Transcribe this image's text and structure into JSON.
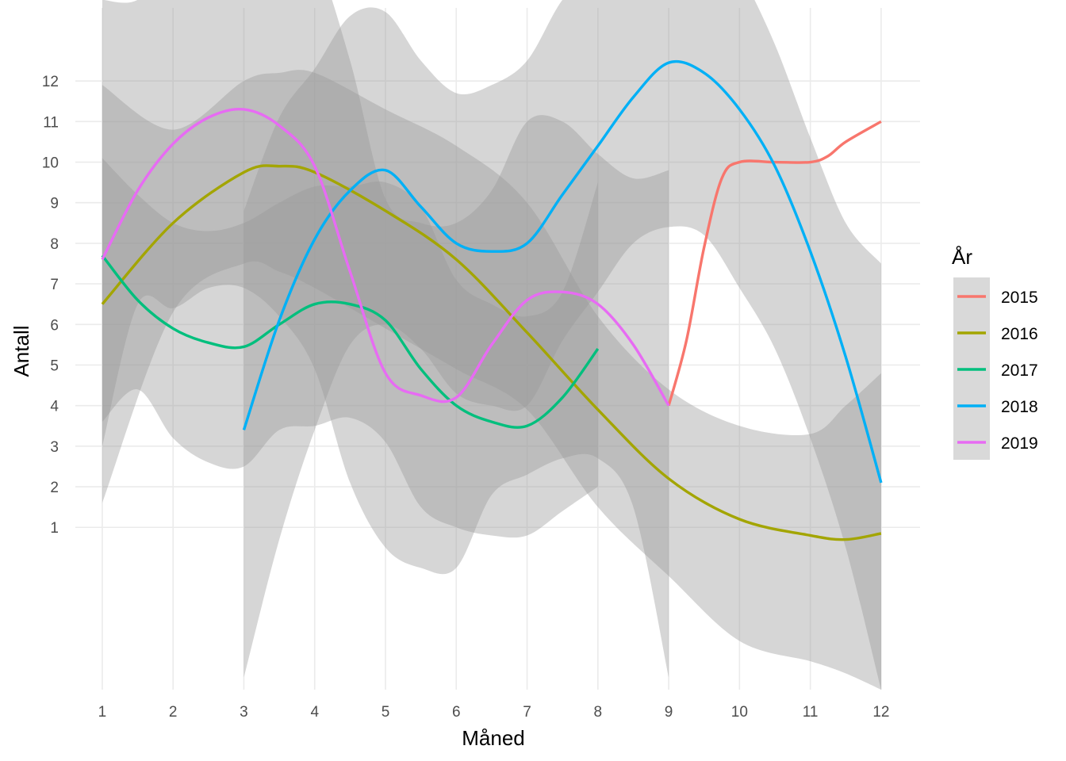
{
  "chart_data": {
    "type": "line",
    "xlabel": "Måned",
    "ylabel": "Antall",
    "xlim": [
      0.62,
      12.55
    ],
    "ylim": [
      -3.0,
      13.8
    ],
    "x_ticks": [
      1,
      2,
      3,
      4,
      5,
      6,
      7,
      8,
      9,
      10,
      11,
      12
    ],
    "y_ticks": [
      1,
      2,
      3,
      4,
      5,
      6,
      7,
      8,
      9,
      10,
      11,
      12
    ],
    "grid": true,
    "legend_title": "År",
    "legend_position": "right",
    "series": [
      {
        "name": "2015",
        "color": "#F8766D",
        "x": [
          9,
          9.25,
          9.5,
          9.75,
          10,
          10.5,
          11,
          11.25,
          11.5,
          12
        ],
        "y": [
          4.0,
          5.6,
          7.9,
          9.6,
          10.0,
          10.0,
          10.0,
          10.15,
          10.5,
          11.0
        ],
        "band": null
      },
      {
        "name": "2016",
        "color": "#A3A500",
        "x": [
          1,
          2,
          3,
          3.5,
          4,
          5,
          6,
          7,
          8,
          9,
          10,
          11,
          11.5,
          12
        ],
        "y": [
          6.5,
          8.5,
          9.75,
          9.9,
          9.75,
          8.8,
          7.6,
          5.8,
          3.9,
          2.2,
          1.2,
          0.8,
          0.7,
          0.85
        ],
        "band": {
          "lower": [
            1.6,
            6.3,
            7.5,
            7.3,
            6.9,
            5.9,
            4.9,
            3.9,
            1.5,
            -0.2,
            -1.8,
            -2.3,
            -2.6,
            -3.0
          ],
          "upper": [
            11.9,
            10.8,
            12.0,
            12.2,
            12.2,
            11.3,
            10.4,
            9.0,
            6.2,
            4.4,
            3.5,
            3.3,
            4.0,
            4.8
          ]
        }
      },
      {
        "name": "2017",
        "color": "#00BF7D",
        "x": [
          1,
          1.5,
          2,
          2.5,
          3,
          3.5,
          4,
          4.5,
          5,
          5.5,
          6,
          6.5,
          7,
          7.5,
          8
        ],
        "y": [
          7.7,
          6.6,
          5.9,
          5.55,
          5.45,
          6.0,
          6.5,
          6.5,
          6.1,
          4.9,
          4.0,
          3.6,
          3.5,
          4.2,
          5.4
        ],
        "band": {
          "lower": [
            3.6,
            4.4,
            3.2,
            2.6,
            2.5,
            3.4,
            3.5,
            3.7,
            3.1,
            1.5,
            1.0,
            0.8,
            0.8,
            1.4,
            2.0
          ],
          "upper": [
            10.1,
            9.2,
            8.5,
            8.3,
            8.5,
            9.0,
            9.4,
            9.4,
            9.5,
            8.9,
            7.1,
            6.5,
            6.2,
            6.8,
            9.5
          ]
        }
      },
      {
        "name": "2018",
        "color": "#00B0F6",
        "x": [
          3,
          3.5,
          4,
          4.5,
          5,
          5.5,
          6,
          6.5,
          7,
          7.5,
          8,
          8.5,
          9,
          9.5,
          10,
          10.5,
          11,
          11.5,
          12
        ],
        "y": [
          3.4,
          6.1,
          8.1,
          9.3,
          9.8,
          8.9,
          8.0,
          7.8,
          8.0,
          9.2,
          10.4,
          11.6,
          12.45,
          12.2,
          11.3,
          9.9,
          7.8,
          5.2,
          2.1
        ],
        "band": {
          "lower": [
            -2.7,
            0.7,
            3.4,
            5.5,
            6.0,
            5.4,
            4.3,
            4.0,
            4.0,
            5.6,
            6.8,
            8.0,
            8.4,
            8.2,
            6.9,
            5.4,
            3.2,
            0.5,
            -3.0
          ],
          "upper": [
            8.8,
            11.1,
            12.3,
            13.6,
            13.7,
            12.5,
            11.7,
            11.9,
            12.5,
            14.0,
            14.8,
            15.6,
            16.4,
            16.0,
            14.7,
            12.9,
            10.6,
            8.5,
            7.5
          ]
        }
      },
      {
        "name": "2019",
        "color": "#E76BF3",
        "x": [
          1,
          1.5,
          2,
          2.5,
          3,
          3.5,
          4,
          4.5,
          5,
          5.5,
          6,
          6.5,
          7,
          7.5,
          8,
          8.5,
          9
        ],
        "y": [
          7.6,
          9.3,
          10.45,
          11.1,
          11.3,
          10.9,
          9.9,
          7.3,
          4.8,
          4.25,
          4.2,
          5.5,
          6.6,
          6.8,
          6.5,
          5.5,
          4.0
        ],
        "band": {
          "lower": [
            3.0,
            6.5,
            6.4,
            6.9,
            6.9,
            6.2,
            4.9,
            2.1,
            0.5,
            0.0,
            0.0,
            1.8,
            2.3,
            2.7,
            2.7,
            1.5,
            -2.7
          ],
          "upper": [
            14.0,
            14.0,
            15.0,
            15.9,
            16.2,
            15.8,
            15.1,
            12.5,
            9.1,
            8.5,
            8.5,
            9.3,
            11.0,
            11.0,
            10.2,
            9.6,
            9.8
          ]
        }
      }
    ]
  }
}
